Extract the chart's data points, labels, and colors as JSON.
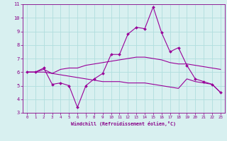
{
  "x": [
    0,
    1,
    2,
    3,
    4,
    5,
    6,
    7,
    8,
    9,
    10,
    11,
    12,
    13,
    14,
    15,
    16,
    17,
    18,
    19,
    20,
    21,
    22,
    23
  ],
  "line1": [
    6.0,
    6.0,
    6.3,
    5.1,
    5.2,
    5.0,
    3.4,
    5.0,
    5.5,
    5.9,
    7.3,
    7.3,
    8.8,
    9.3,
    9.2,
    10.8,
    8.9,
    7.5,
    7.8,
    6.5,
    5.5,
    5.3,
    5.1,
    4.5
  ],
  "line2": [
    6.0,
    6.0,
    6.2,
    5.9,
    6.2,
    6.3,
    6.3,
    6.5,
    6.6,
    6.7,
    6.8,
    6.9,
    7.0,
    7.1,
    7.1,
    7.0,
    6.9,
    6.7,
    6.6,
    6.6,
    6.5,
    6.4,
    6.3,
    6.2
  ],
  "line3": [
    6.0,
    6.0,
    6.0,
    5.9,
    5.8,
    5.7,
    5.6,
    5.5,
    5.4,
    5.3,
    5.3,
    5.3,
    5.2,
    5.2,
    5.2,
    5.1,
    5.0,
    4.9,
    4.8,
    5.5,
    5.3,
    5.2,
    5.1,
    4.5
  ],
  "line_color": "#990099",
  "bg_color": "#d8f0f0",
  "grid_color": "#b0dede",
  "text_color": "#880088",
  "xlabel": "Windchill (Refroidissement éolien,°C)",
  "ylim": [
    3,
    11
  ],
  "xlim": [
    -0.5,
    23.5
  ],
  "yticks": [
    3,
    4,
    5,
    6,
    7,
    8,
    9,
    10,
    11
  ],
  "xticks": [
    0,
    1,
    2,
    3,
    4,
    5,
    6,
    7,
    8,
    9,
    10,
    11,
    12,
    13,
    14,
    15,
    16,
    17,
    18,
    19,
    20,
    21,
    22,
    23
  ]
}
